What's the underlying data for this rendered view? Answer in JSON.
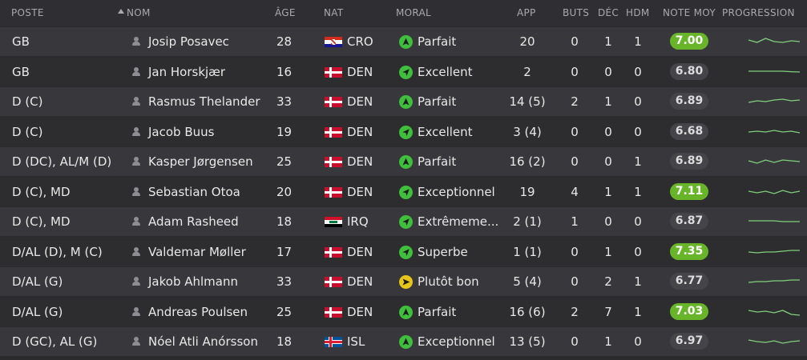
{
  "columns": {
    "poste": "POSTE",
    "nom": "NOM",
    "age": "ÂGE",
    "nat": "NAT",
    "moral": "MORAL",
    "app": "APP",
    "buts": "BUTS",
    "dec": "DÉC",
    "hdm": "HDM",
    "note": "NOTE MOY",
    "progression": "PROGRESSION"
  },
  "colors": {
    "rating_good": "#69b52a",
    "rating_plain": "#454549",
    "morale_green": "#3fbf3c",
    "morale_yellow": "#e8c619",
    "sparkline": "#7fd07a"
  },
  "players": [
    {
      "poste": "GB",
      "nom": "Josip Posavec",
      "age": "28",
      "flag": "croatia-flag",
      "nat": "CRO",
      "morale_icon": "morale-up-icon",
      "moral": "Parfait",
      "app": "20",
      "buts": "0",
      "dec": "1",
      "hdm": "1",
      "note": "7.00",
      "note_good": true,
      "trend": [
        0.6,
        0.45,
        0.7,
        0.5,
        0.45,
        0.55,
        0.5
      ]
    },
    {
      "poste": "GB",
      "nom": "Jan Horskjær",
      "age": "16",
      "flag": "denmark-flag",
      "nat": "DEN",
      "morale_icon": "morale-upright-icon",
      "moral": "Excellent",
      "app": "2",
      "buts": "0",
      "dec": "0",
      "hdm": "0",
      "note": "6.80",
      "note_good": false,
      "trend": [
        0.55,
        0.55,
        0.55,
        0.55,
        0.55,
        0.52,
        0.5
      ]
    },
    {
      "poste": "D (C)",
      "nom": "Rasmus Thelander",
      "age": "33",
      "flag": "denmark-flag",
      "nat": "DEN",
      "morale_icon": "morale-up-icon",
      "moral": "Parfait",
      "app": "14 (5)",
      "buts": "2",
      "dec": "1",
      "hdm": "0",
      "note": "6.89",
      "note_good": false,
      "trend": [
        0.45,
        0.55,
        0.5,
        0.6,
        0.65,
        0.55,
        0.6
      ]
    },
    {
      "poste": "D (C)",
      "nom": "Jacob Buus",
      "age": "19",
      "flag": "denmark-flag",
      "nat": "DEN",
      "morale_icon": "morale-upright-icon",
      "moral": "Excellent",
      "app": "3 (4)",
      "buts": "0",
      "dec": "0",
      "hdm": "0",
      "note": "6.68",
      "note_good": false,
      "trend": [
        0.5,
        0.55,
        0.5,
        0.6,
        0.5,
        0.55,
        0.45
      ]
    },
    {
      "poste": "D (DC), AL/M (D)",
      "nom": "Kasper Jørgensen",
      "age": "25",
      "flag": "denmark-flag",
      "nat": "DEN",
      "morale_icon": "morale-up-icon",
      "moral": "Parfait",
      "app": "16 (2)",
      "buts": "0",
      "dec": "0",
      "hdm": "1",
      "note": "6.89",
      "note_good": false,
      "trend": [
        0.55,
        0.4,
        0.6,
        0.45,
        0.6,
        0.55,
        0.5
      ]
    },
    {
      "poste": "D (C), MD",
      "nom": "Sebastian Otoa",
      "age": "20",
      "flag": "denmark-flag",
      "nat": "DEN",
      "morale_icon": "morale-upright-icon",
      "moral": "Exceptionnel",
      "app": "19",
      "buts": "4",
      "dec": "1",
      "hdm": "1",
      "note": "7.11",
      "note_good": true,
      "trend": [
        0.55,
        0.45,
        0.55,
        0.4,
        0.6,
        0.45,
        0.55
      ]
    },
    {
      "poste": "D (C), MD",
      "nom": "Adam Rasheed",
      "age": "18",
      "flag": "iraq-flag",
      "nat": "IRQ",
      "morale_icon": "morale-upright-icon",
      "moral": "Extrêmeme...",
      "app": "2 (1)",
      "buts": "1",
      "dec": "0",
      "hdm": "0",
      "note": "6.87",
      "note_good": false,
      "trend": [
        0.55,
        0.55,
        0.55,
        0.55,
        0.5,
        0.5,
        0.5
      ]
    },
    {
      "poste": "D/AL (D), M (C)",
      "nom": "Valdemar Møller",
      "age": "17",
      "flag": "denmark-flag",
      "nat": "DEN",
      "morale_icon": "morale-upright-icon",
      "moral": "Superbe",
      "app": "1 (1)",
      "buts": "0",
      "dec": "1",
      "hdm": "0",
      "note": "7.35",
      "note_good": true,
      "trend": [
        0.5,
        0.45,
        0.5,
        0.5,
        0.55,
        0.6,
        0.6
      ]
    },
    {
      "poste": "D/AL (G)",
      "nom": "Jakob Ahlmann",
      "age": "33",
      "flag": "denmark-flag",
      "nat": "DEN",
      "morale_icon": "morale-right-icon",
      "moral": "Plutôt bon",
      "app": "5 (4)",
      "buts": "0",
      "dec": "2",
      "hdm": "1",
      "note": "6.77",
      "note_good": false,
      "trend": [
        0.45,
        0.5,
        0.5,
        0.55,
        0.55,
        0.6,
        0.6
      ]
    },
    {
      "poste": "D/AL (G)",
      "nom": "Andreas Poulsen",
      "age": "25",
      "flag": "denmark-flag",
      "nat": "DEN",
      "morale_icon": "morale-up-icon",
      "moral": "Parfait",
      "app": "16 (6)",
      "buts": "2",
      "dec": "7",
      "hdm": "1",
      "note": "7.03",
      "note_good": true,
      "trend": [
        0.6,
        0.5,
        0.55,
        0.45,
        0.6,
        0.35,
        0.3
      ]
    },
    {
      "poste": "D (GC), AL (G)",
      "nom": "Nóel Atli Anórsson",
      "age": "18",
      "flag": "iceland-flag",
      "nat": "ISL",
      "morale_icon": "morale-up-icon",
      "moral": "Exceptionnel",
      "app": "13 (5)",
      "buts": "0",
      "dec": "1",
      "hdm": "0",
      "note": "6.97",
      "note_good": false,
      "trend": [
        0.6,
        0.5,
        0.45,
        0.55,
        0.4,
        0.5,
        0.55
      ]
    }
  ]
}
